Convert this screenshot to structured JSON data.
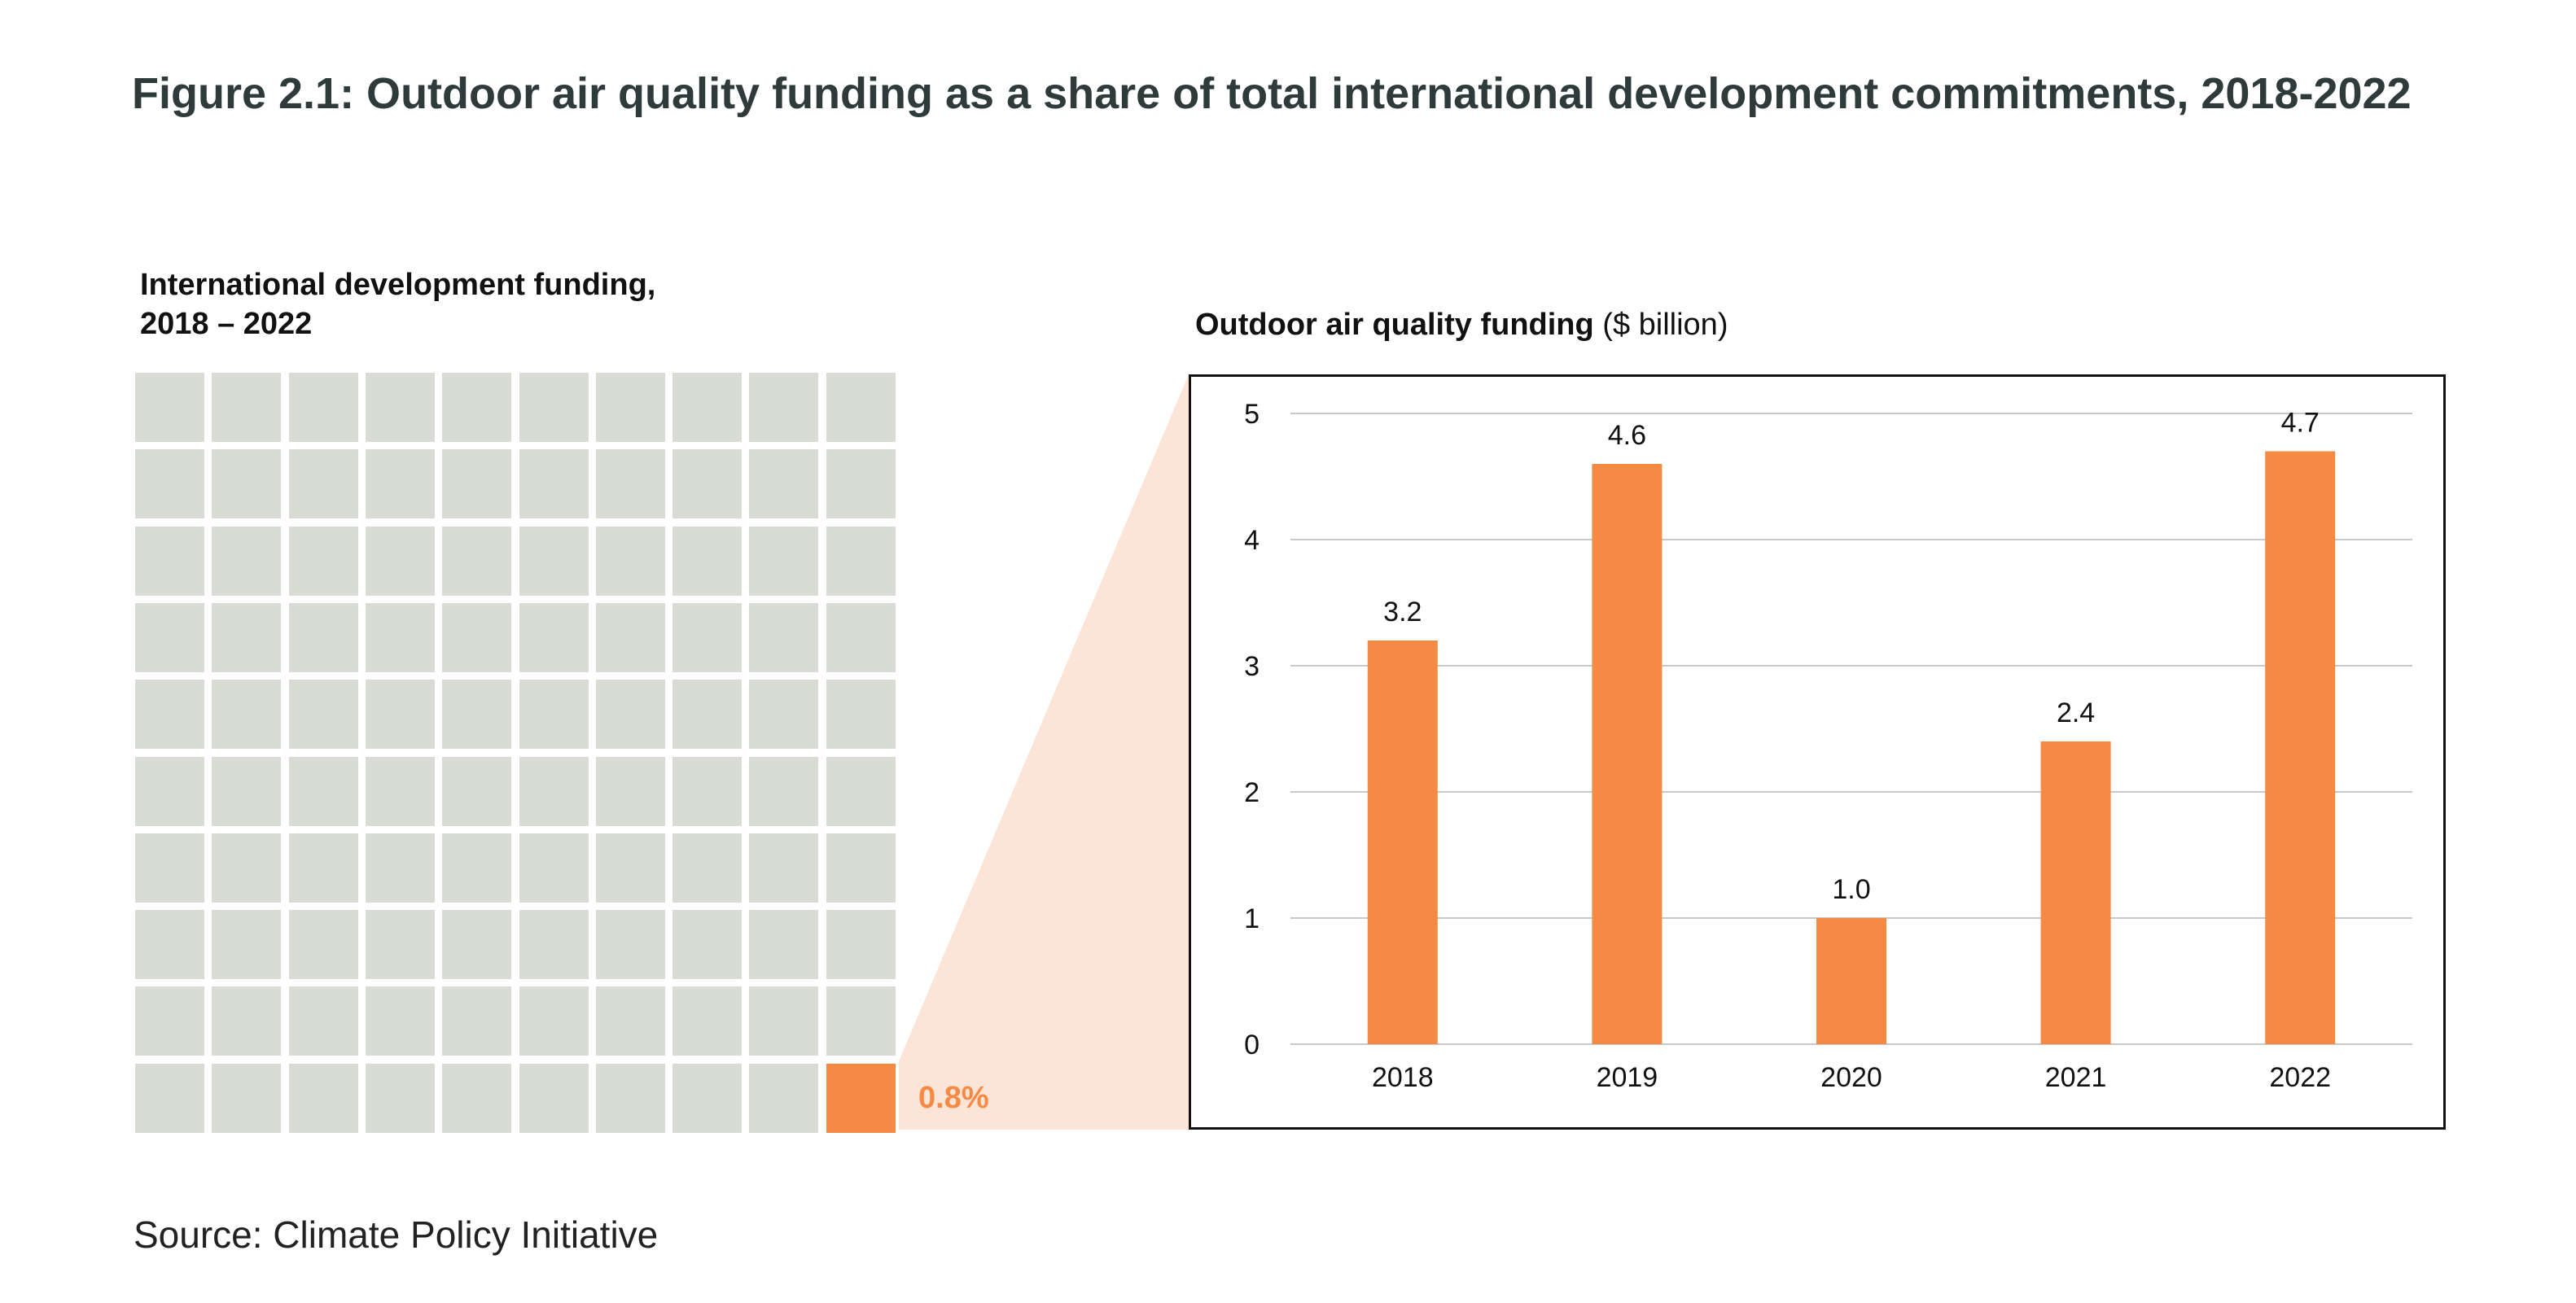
{
  "figure_title": "Figure 2.1: Outdoor air quality funding as a share of total international development commitments, 2018-2022",
  "waffle": {
    "title_line1": "International development funding,",
    "title_line2": "2018 – 2022",
    "rows": 10,
    "cols": 10,
    "highlighted_cells": 1,
    "share_label": "0.8%",
    "colors": {
      "cell": "#d9dbd5",
      "highlight": "#f48a44",
      "wedge": "#fce4d6"
    }
  },
  "chart_heading": {
    "bold": "Outdoor air quality funding",
    "unit": "($ billion)"
  },
  "chart_data": {
    "type": "bar",
    "title": "",
    "xlabel": "",
    "ylabel": "",
    "categories": [
      "2018",
      "2019",
      "2020",
      "2021",
      "2022"
    ],
    "values": [
      3.2,
      4.6,
      1.0,
      2.4,
      4.7
    ],
    "data_labels": [
      "3.2",
      "4.6",
      "1.0",
      "2.4",
      "4.7"
    ],
    "ylim": [
      0,
      5
    ],
    "yticks": [
      "0",
      "1",
      "2",
      "3",
      "4",
      "5"
    ],
    "grid": true,
    "bar_color": "#f48a44",
    "grid_color": "#c8c8c8"
  },
  "source": "Source: Climate Policy Initiative"
}
